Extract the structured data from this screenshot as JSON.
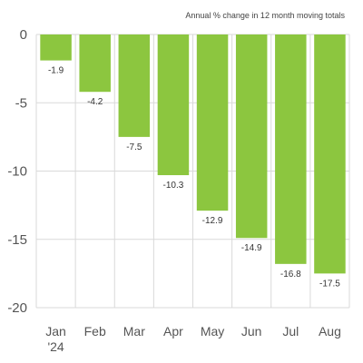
{
  "chart_data": {
    "type": "bar",
    "annotation": "Annual % change in 12 month moving totals",
    "categories": [
      "Jan",
      "Feb",
      "Mar",
      "Apr",
      "May",
      "Jun",
      "Jul",
      "Aug"
    ],
    "category_sublabels": [
      "'24",
      "",
      "",
      "",
      "",
      "",
      "",
      ""
    ],
    "values": [
      -1.9,
      -4.2,
      -7.5,
      -10.3,
      -12.9,
      -14.9,
      -16.8,
      -17.5
    ],
    "value_labels": [
      "-1.9",
      "-4.2",
      "-7.5",
      "-10.3",
      "-12.9",
      "-14.9",
      "-16.8",
      "-17.5"
    ],
    "yticks": [
      0,
      -5,
      -10,
      -15,
      -20
    ],
    "ytick_labels": [
      "0",
      "-5",
      "-10",
      "-15",
      "-20"
    ],
    "ylim": [
      -20,
      0
    ],
    "grid": true,
    "bar_color": "#8cc63f",
    "grid_color": "#d9d9d9",
    "xlabel": "",
    "ylabel": "",
    "title": ""
  }
}
